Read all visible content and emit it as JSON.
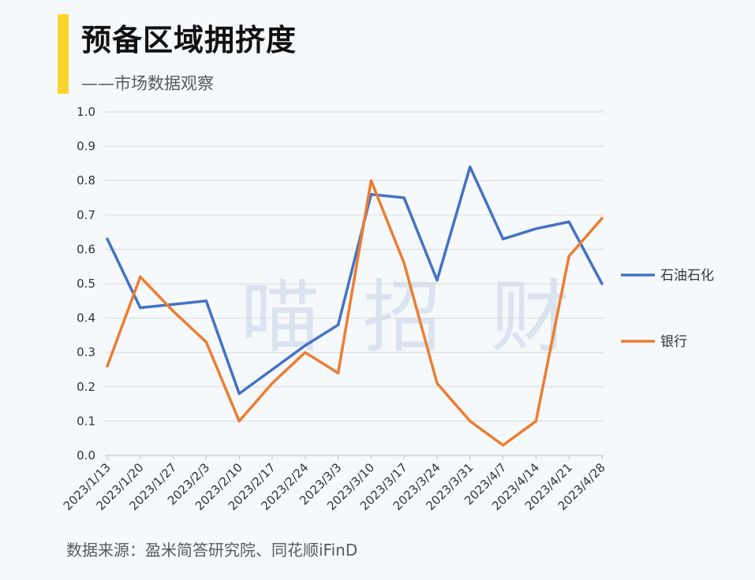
{
  "header": {
    "title": "预备区域拥挤度",
    "subtitle": "——市场数据观察",
    "accent_color": "#fdd32e"
  },
  "watermark": {
    "chars": [
      "喵",
      "招",
      "财"
    ]
  },
  "source": "数据来源：盈米简答研究院、同花顺iFinD",
  "chart_data": {
    "type": "line",
    "categories": [
      "2023/1/13",
      "2023/1/20",
      "2023/1/27",
      "2023/2/3",
      "2023/2/10",
      "2023/2/17",
      "2023/2/24",
      "2023/3/3",
      "2023/3/10",
      "2023/3/17",
      "2023/3/24",
      "2023/3/31",
      "2023/4/7",
      "2023/4/14",
      "2023/4/21",
      "2023/4/28"
    ],
    "y_ticks": [
      "0.0",
      "0.1",
      "0.2",
      "0.3",
      "0.4",
      "0.5",
      "0.6",
      "0.7",
      "0.8",
      "0.9",
      "1.0"
    ],
    "ylim": [
      0,
      1.0
    ],
    "grid": true,
    "legend_position": "right",
    "series": [
      {
        "name": "石油石化",
        "color": "#4472c4",
        "values": [
          0.63,
          0.43,
          0.44,
          0.45,
          0.18,
          0.25,
          0.32,
          0.38,
          0.76,
          0.75,
          0.51,
          0.84,
          0.63,
          0.66,
          0.68,
          0.5
        ]
      },
      {
        "name": "银行",
        "color": "#ed7d31",
        "values": [
          0.26,
          0.52,
          0.42,
          0.33,
          0.1,
          0.21,
          0.3,
          0.24,
          0.8,
          0.56,
          0.21,
          0.1,
          0.03,
          0.1,
          0.58,
          0.69
        ]
      }
    ]
  }
}
